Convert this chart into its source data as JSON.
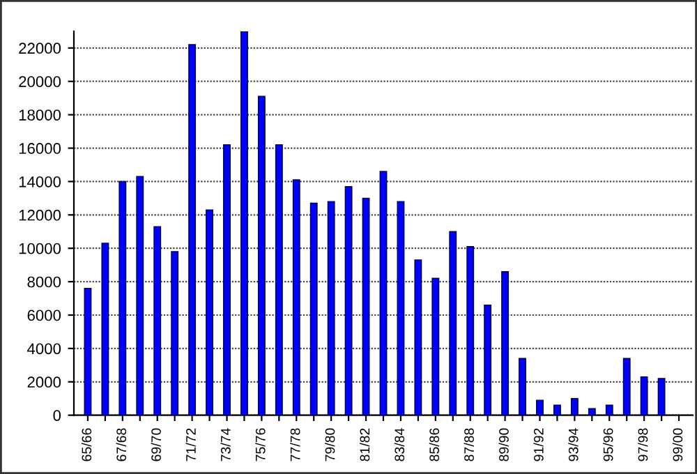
{
  "chart_data": {
    "type": "bar",
    "categories": [
      "65/66",
      null,
      "67/68",
      null,
      "69/70",
      null,
      "71/72",
      null,
      "73/74",
      null,
      "75/76",
      null,
      "77/78",
      null,
      "79/80",
      null,
      "81/82",
      null,
      "83/84",
      null,
      "85/86",
      null,
      "87/88",
      null,
      "89/90",
      null,
      "91/92",
      null,
      "93/94",
      null,
      "95/96",
      null,
      "97/98",
      null,
      "99/00"
    ],
    "values": [
      7600,
      10300,
      14000,
      14300,
      11300,
      9800,
      22200,
      12300,
      16200,
      23000,
      19100,
      16200,
      14100,
      12700,
      12800,
      13700,
      13000,
      14600,
      12800,
      9300,
      8200,
      11000,
      10100,
      6600,
      8600,
      3400,
      900,
      600,
      1000,
      400,
      600,
      3400,
      2300,
      2200,
      null
    ],
    "color": "#0000ff",
    "ylim": [
      0,
      23000
    ],
    "yticks": [
      0,
      2000,
      4000,
      6000,
      8000,
      10000,
      12000,
      14000,
      16000,
      18000,
      20000,
      22000
    ],
    "grid": "y"
  }
}
